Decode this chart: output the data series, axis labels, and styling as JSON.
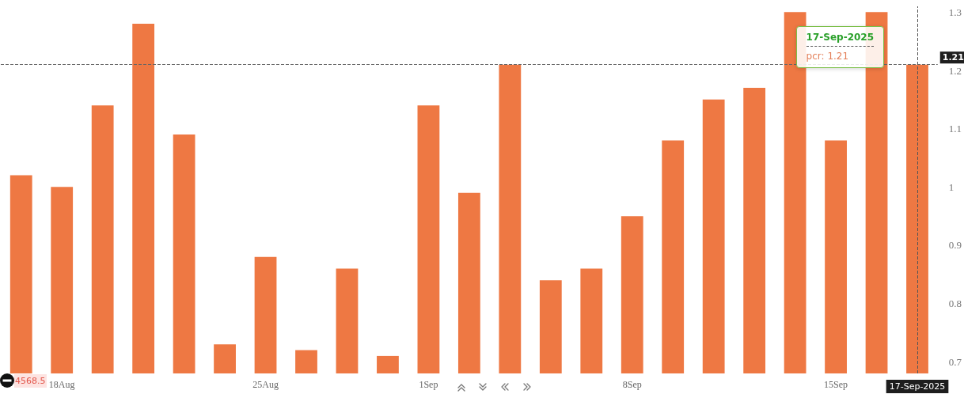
{
  "chart_data": {
    "type": "bar",
    "categories": [
      null,
      "18Aug",
      null,
      null,
      null,
      null,
      "25Aug",
      null,
      null,
      null,
      "1Sep",
      null,
      null,
      null,
      null,
      "8Sep",
      null,
      null,
      null,
      null,
      "15Sep",
      null,
      "17-Sep-2025"
    ],
    "series": [
      {
        "color": "#ee7843",
        "values": [
          1.02,
          1.0,
          1.14,
          1.28,
          1.09,
          0.73,
          0.88,
          0.72,
          0.86,
          0.71,
          1.14,
          0.99,
          1.21,
          0.84,
          0.86,
          0.95,
          1.08,
          1.15,
          1.17,
          1.3,
          1.08,
          1.3,
          1.21
        ]
      }
    ],
    "ylim": [
      0.68,
      1.31
    ],
    "yticks": [
      0.7,
      0.8,
      0.9,
      1,
      1.1,
      1.2,
      1.3
    ],
    "ref_lines": [
      {
        "axis": "y",
        "value": 1.21,
        "label": "1.21",
        "color": "#666666",
        "line_style": "dashed"
      },
      {
        "axis": "x",
        "value": "17-Sep-2025",
        "color": "#555555",
        "line_style": "dashed"
      }
    ],
    "annotations": [
      "17-Sep-2025",
      "pcr: 1.21",
      "4568.5"
    ]
  }
}
